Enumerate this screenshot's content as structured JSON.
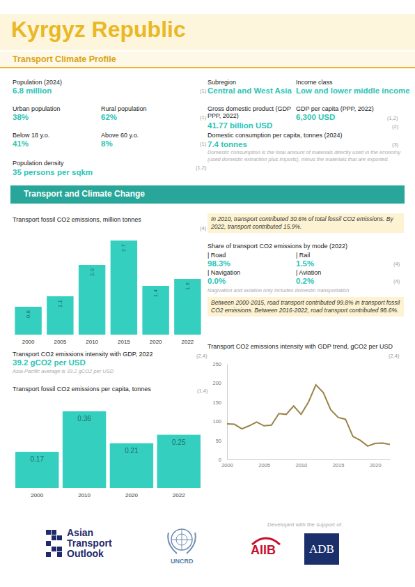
{
  "header": {
    "title": "Kyrgyz Republic",
    "subtitle": "Transport Climate Profile"
  },
  "stats": {
    "population": {
      "label": "Population (2024)",
      "value": "6.8 million",
      "source": "(1)"
    },
    "urban": {
      "label": "Urban population",
      "value": "38%"
    },
    "rural": {
      "label": "Rural population",
      "value": "62%",
      "source": "(1)"
    },
    "below18": {
      "label": "Below 18 y.o.",
      "value": "41%"
    },
    "above60": {
      "label": "Above 60 y.o.",
      "value": "8%",
      "source": "(1)"
    },
    "density": {
      "label": "Population density",
      "value": "35 persons per sqkm",
      "source": "(1,2)"
    },
    "subregion": {
      "label": "Subregion",
      "value": "Central and West Asia"
    },
    "income": {
      "label": "Income class",
      "value": "Low and lower middle income"
    },
    "gdp": {
      "label": "Gross domestic product (GDP PPP, 2022)",
      "value": "41.77 billion USD",
      "source": "(2)"
    },
    "gdp_pc": {
      "label": "GDP per capita (PPP, 2022)",
      "value": "6,300  USD",
      "source": "(1,2)"
    },
    "consumption": {
      "label": "Domestic consumption per capita, tonnes (2024)",
      "value": "7.4 tonnes",
      "source": "(3)",
      "note": "Domestic consumption is the total amount of materials directly used in the economy (used domestic extraction plus imports), minus the materials that are exported."
    }
  },
  "section_title": "Transport and Climate Change",
  "highlights": [
    "In 2010, transport contributed 30.6% of total fossil CO2 emissions. By 2022, transport contributed 15.9%.",
    "Between 2000-2015, road transport contributed 99.8% in transport fossil CO2 emissions. Between 2016-2022, road transport contributed 98.6%."
  ],
  "mode_share": {
    "title": "Share of transport CO2 emissions by mode (2022)",
    "items": [
      {
        "label": "| Road",
        "value": "98.3%"
      },
      {
        "label": "| Rail",
        "value": "1.5%"
      },
      {
        "label": "| Navigation",
        "value": "0.0%"
      },
      {
        "label": "| Aviation",
        "value": "0.2%"
      }
    ],
    "sources": [
      "(4)",
      "(4)"
    ],
    "note": "Nagivation and aviation only includes domestic transportation"
  },
  "intensity": {
    "label": "Transport CO2 emissions intensity with GDP, 2022",
    "value": "39.2 gCO2 per USD",
    "source": "(2,4)",
    "note": "Asia-Pacific average is 33.2 gCO2 per USD"
  },
  "chart_data": [
    {
      "type": "bar",
      "title": "Transport fossil CO2 emissions, million tonnes",
      "annotation": "(4)",
      "categories": [
        "2000",
        "2005",
        "2010",
        "2015",
        "2020",
        "2022"
      ],
      "values": [
        0.8,
        1.1,
        2.0,
        2.7,
        1.4,
        1.6
      ],
      "value_labels": [
        "0.8",
        "1.1",
        "2.0",
        "2.7",
        "1.4",
        "1.6"
      ],
      "color": "#35cfc0",
      "ylim": [
        0,
        2.7
      ],
      "data_labels": true,
      "tick_labels": "x"
    },
    {
      "type": "bar",
      "title": "Transport fossil CO2 emissions per capita, tonnes",
      "annotation": "(1,4)",
      "categories": [
        "2000",
        "2010",
        "2020",
        "2022"
      ],
      "values": [
        0.17,
        0.36,
        0.21,
        0.25
      ],
      "color": "#35cfc0",
      "ylim": [
        0,
        0.36
      ],
      "data_labels": true,
      "tick_labels": "x"
    },
    {
      "type": "line",
      "title": "Transport CO2 emissions intensity with GDP trend, gCO2 per USD",
      "annotation": "(2,4)",
      "x": [
        2000,
        2001,
        2002,
        2003,
        2004,
        2005,
        2006,
        2007,
        2008,
        2009,
        2010,
        2011,
        2012,
        2013,
        2014,
        2015,
        2016,
        2017,
        2018,
        2019,
        2020,
        2021,
        2022
      ],
      "values": [
        93,
        92,
        80,
        88,
        98,
        88,
        90,
        120,
        118,
        140,
        118,
        150,
        195,
        175,
        130,
        110,
        105,
        60,
        50,
        35,
        42,
        43,
        39.2
      ],
      "color": "#9a8246",
      "xlim": [
        2000,
        2022
      ],
      "xticks": [
        2000,
        2005,
        2010,
        2015,
        2020
      ],
      "ylim": [
        0,
        250
      ],
      "yticks": [
        0,
        50,
        100,
        150,
        200,
        250
      ],
      "grid": false
    }
  ],
  "footer": {
    "support": "Developed with the support of:",
    "ato": [
      "Asian",
      "Transport",
      "Outlook"
    ],
    "uncrd": "UNCRD",
    "aiib": "AIIB",
    "adb": "ADB"
  }
}
